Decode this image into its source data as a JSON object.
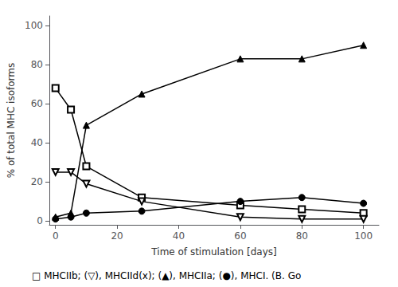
{
  "chart_data": {
    "type": "line",
    "title": "",
    "xlabel": "Time of stimulation [days]",
    "ylabel": "% of total MHC isoforms",
    "xlim": [
      -2,
      105
    ],
    "ylim": [
      -2,
      105
    ],
    "xticks": [
      0,
      20,
      40,
      60,
      80,
      100
    ],
    "yticks": [
      0,
      20,
      40,
      60,
      80,
      100
    ],
    "grid": false,
    "color": "black",
    "x": [
      0,
      5,
      10,
      28,
      60,
      80,
      100
    ],
    "series": [
      {
        "values": [
          68,
          57,
          28,
          12,
          8,
          6,
          4
        ],
        "marker": "square_open"
      },
      {
        "values": [
          25,
          25,
          19,
          10,
          2,
          1,
          1
        ],
        "marker": "triangle_down_open"
      },
      {
        "values": [
          2,
          4,
          49,
          65,
          83,
          83,
          90
        ],
        "marker": "triangle"
      },
      {
        "values": [
          1,
          2,
          4,
          5,
          10,
          12,
          9
        ],
        "marker": "circle"
      }
    ],
    "annotation": "□ MHCIIb; (▽), MHCIId(x); (▲), MHCIIa; (●), MHCI. (B. Go"
  }
}
